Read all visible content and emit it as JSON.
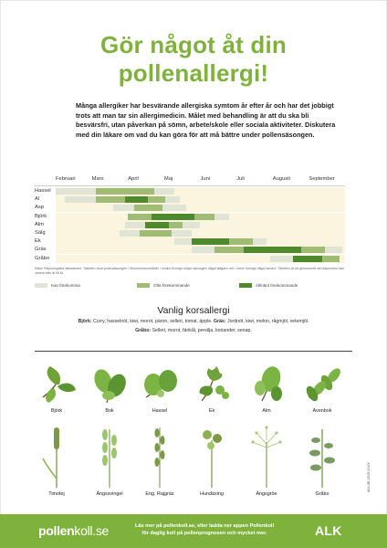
{
  "title_line1": "Gör något åt din",
  "title_line2": "pollenallergi!",
  "intro": "Många allergiker har besvärande allergiska symtom år efter år och har det jobbigt trots att man tar sin allergimedicin. Målet med behandling är att du ska bli besvärsfri, utan påverkan på sömn, arbete/skole eller sociala aktiviteter. Diskutera med din läkare om vad du kan göra för att må bättre under pollensäsongen.",
  "calendar": {
    "months": [
      "Februari",
      "Mars",
      "April",
      "Maj",
      "Juni",
      "Juli",
      "Augusti",
      "September"
    ],
    "rows": [
      {
        "name": "Hassel",
        "segments": [
          {
            "start": 0.0,
            "end": 0.14,
            "level": 0
          },
          {
            "start": 0.14,
            "end": 0.34,
            "level": 1
          },
          {
            "start": 0.34,
            "end": 0.41,
            "level": 0
          }
        ]
      },
      {
        "name": "Al",
        "segments": [
          {
            "start": 0.03,
            "end": 0.14,
            "level": 0
          },
          {
            "start": 0.14,
            "end": 0.24,
            "level": 1
          },
          {
            "start": 0.24,
            "end": 0.32,
            "level": 2
          },
          {
            "start": 0.32,
            "end": 0.38,
            "level": 1
          },
          {
            "start": 0.38,
            "end": 0.43,
            "level": 0
          }
        ]
      },
      {
        "name": "Asp",
        "segments": [
          {
            "start": 0.2,
            "end": 0.27,
            "level": 0
          },
          {
            "start": 0.27,
            "end": 0.37,
            "level": 1
          },
          {
            "start": 0.37,
            "end": 0.45,
            "level": 0
          }
        ]
      },
      {
        "name": "Björk",
        "segments": [
          {
            "start": 0.25,
            "end": 0.33,
            "level": 1
          },
          {
            "start": 0.33,
            "end": 0.48,
            "level": 2
          },
          {
            "start": 0.48,
            "end": 0.55,
            "level": 1
          },
          {
            "start": 0.55,
            "end": 0.6,
            "level": 0
          }
        ]
      },
      {
        "name": "Alm",
        "segments": [
          {
            "start": 0.24,
            "end": 0.31,
            "level": 0
          },
          {
            "start": 0.31,
            "end": 0.39,
            "level": 2
          },
          {
            "start": 0.39,
            "end": 0.44,
            "level": 1
          },
          {
            "start": 0.44,
            "end": 0.5,
            "level": 0
          }
        ]
      },
      {
        "name": "Sälg",
        "segments": [
          {
            "start": 0.22,
            "end": 0.29,
            "level": 0
          },
          {
            "start": 0.29,
            "end": 0.4,
            "level": 1
          },
          {
            "start": 0.4,
            "end": 0.47,
            "level": 0
          }
        ]
      },
      {
        "name": "Ek",
        "segments": [
          {
            "start": 0.41,
            "end": 0.47,
            "level": 0
          },
          {
            "start": 0.47,
            "end": 0.6,
            "level": 2
          },
          {
            "start": 0.6,
            "end": 0.68,
            "level": 1
          },
          {
            "start": 0.68,
            "end": 0.73,
            "level": 0
          }
        ]
      },
      {
        "name": "Gräs",
        "segments": [
          {
            "start": 0.47,
            "end": 0.55,
            "level": 0
          },
          {
            "start": 0.55,
            "end": 0.65,
            "level": 1
          },
          {
            "start": 0.65,
            "end": 0.85,
            "level": 2
          },
          {
            "start": 0.85,
            "end": 0.93,
            "level": 1
          },
          {
            "start": 0.93,
            "end": 0.99,
            "level": 0
          }
        ]
      },
      {
        "name": "Gråbo",
        "segments": [
          {
            "start": 0.74,
            "end": 0.82,
            "level": 0
          },
          {
            "start": 0.82,
            "end": 0.92,
            "level": 2
          },
          {
            "start": 0.92,
            "end": 0.98,
            "level": 1
          }
        ]
      }
    ],
    "source": "Källa: Palynologiska laboratoriet. Tabellen visar pollensäsongen i Stockholmsområdet. I södra Sverige börjar säsongen något tidigare och i norra Sverige något senare. Tabellen är ett genomsnitt och tidpunkten kan variera från år till år.",
    "legend": [
      "Kan förekomma",
      "Ofta förekommande",
      "Allmänt förekommande"
    ],
    "colors": {
      "track": "#fbf5df",
      "low": "#dfe4d4",
      "mid": "#a0bb73",
      "high": "#4e8a2c",
      "brand_green": "#7fb23c"
    }
  },
  "cross": {
    "title": "Vanlig korsallergi",
    "line1_label": "Björk:",
    "line1_text": "Curry, hasselnöt, kiwi, morot, päron, selleri, tomat, äpple.",
    "line1_label2": "Gräs:",
    "line1_text2": "Jordnöt, kiwi, melon, rågmjöl, vetemjöl.",
    "line2_label": "Gråbo:",
    "line2_text": "Selleri, morot, fänkål, persilja, koriander, senap."
  },
  "plants_row1": [
    "Björk",
    "Bok",
    "Hassel",
    "Ek",
    "Alm",
    "Avenbok"
  ],
  "plants_row2": [
    "Timotej",
    "Ängssvingel",
    "Eng. Rajgräs",
    "Hundäxing",
    "Ängsgröe",
    "Gråbo"
  ],
  "doc_id": "ALK-SE-2015-XXXX",
  "footer": {
    "logo_part1": "pollen",
    "logo_part2": "koll.se",
    "text": "Läs mer på pollenkoll.se, eller ladda ner appen Pollenkoll för daglig koll på pollenprognosen och mycket mer.",
    "brand": "ALK"
  }
}
